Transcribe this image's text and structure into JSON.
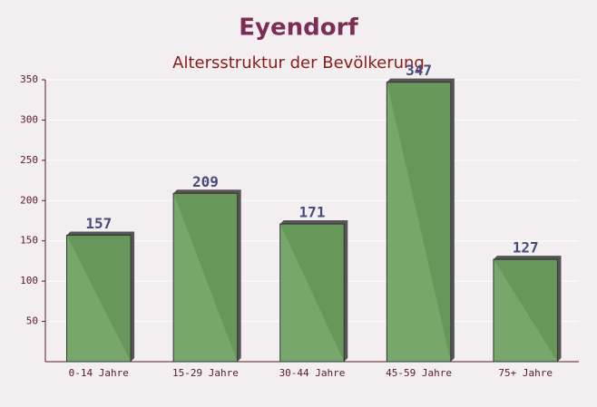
{
  "chart_data": {
    "type": "bar",
    "title": "Eyendorf",
    "subtitle": "Altersstruktur der Bevölkerung",
    "categories": [
      "0-14 Jahre",
      "15-29 Jahre",
      "30-44 Jahre",
      "45-59 Jahre",
      "75+ Jahre"
    ],
    "values": [
      157,
      209,
      171,
      347,
      127
    ],
    "color": "#6a9f5c",
    "ylim": [
      0,
      350
    ],
    "yticks": [
      50,
      100,
      150,
      200,
      250,
      300,
      350
    ],
    "grid": true
  }
}
